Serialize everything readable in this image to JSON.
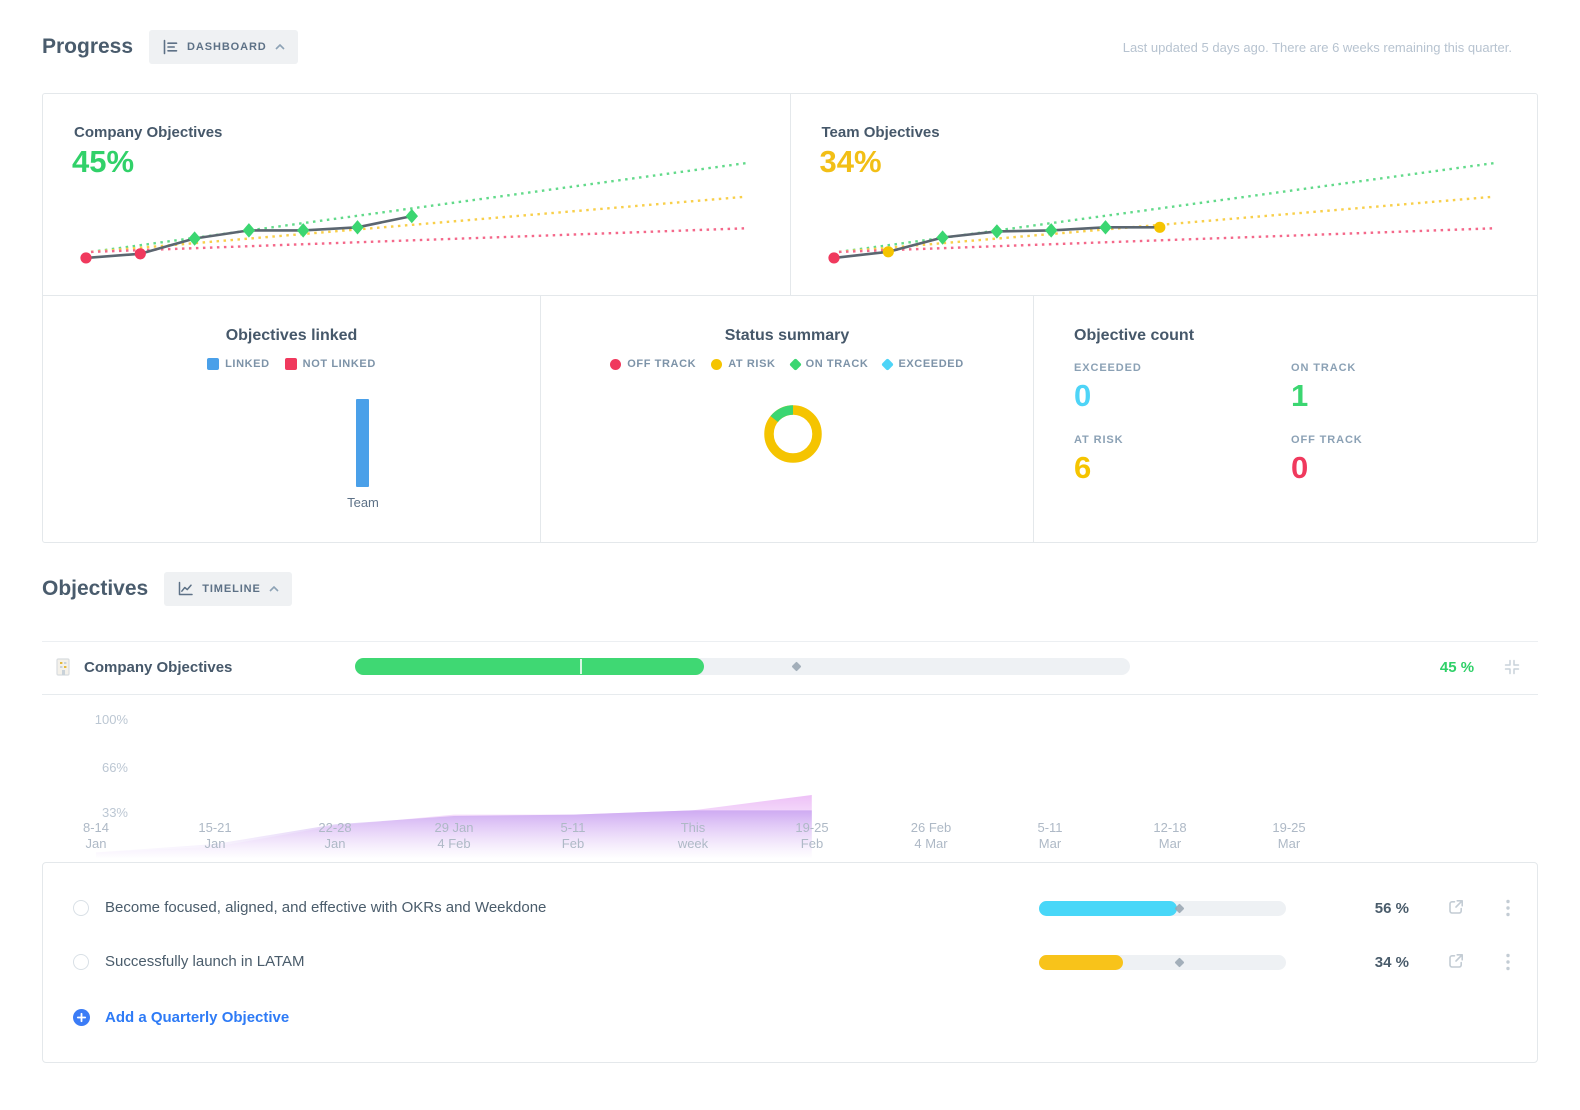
{
  "header": {
    "title": "Progress",
    "view_button": "DASHBOARD",
    "last_updated": "Last updated 5 days ago. There are 6 weeks remaining this quarter."
  },
  "summary": {
    "company": {
      "title": "Company Objectives",
      "value": "45%",
      "value_color": "#31d169"
    },
    "team": {
      "title": "Team Objectives",
      "value": "34%",
      "value_color": "#f2bf16"
    },
    "linked": {
      "title": "Objectives linked",
      "legend": [
        {
          "label": "LINKED",
          "color": "#4aa0e9"
        },
        {
          "label": "NOT LINKED",
          "color": "#f0395d"
        }
      ],
      "bar_label": "Team"
    },
    "status": {
      "title": "Status summary",
      "legend": [
        {
          "label": "OFF TRACK",
          "color": "#f0395d",
          "shape": "circle"
        },
        {
          "label": "AT RISK",
          "color": "#f5c400",
          "shape": "circle"
        },
        {
          "label": "ON TRACK",
          "color": "#3bd671",
          "shape": "diamond"
        },
        {
          "label": "EXCEEDED",
          "color": "#4ed4f7",
          "shape": "diamond"
        }
      ]
    },
    "count": {
      "title": "Objective count",
      "items": [
        {
          "label": "EXCEEDED",
          "value": "0",
          "color": "#4ed4f7"
        },
        {
          "label": "ON TRACK",
          "value": "1",
          "color": "#3bd671"
        },
        {
          "label": "AT RISK",
          "value": "6",
          "color": "#f5c400"
        },
        {
          "label": "OFF TRACK",
          "value": "0",
          "color": "#f0395d"
        }
      ]
    }
  },
  "objectives_section": {
    "title": "Objectives",
    "view_button": "TIMELINE",
    "group_row": {
      "title": "Company Objectives",
      "percent_label": "45 %",
      "percent_color": "#2fd068",
      "progress": 45,
      "expected_marker": 57,
      "segment_divider": 29,
      "bar_color": "#3fd873"
    },
    "rows": [
      {
        "title": "Become focused, aligned, and effective with OKRs and Weekdone",
        "percent_label": "56 %",
        "progress": 56,
        "expected_marker": 57,
        "bar_color": "#48d7f8"
      },
      {
        "title": "Successfully launch in LATAM",
        "percent_label": "34 %",
        "progress": 34,
        "expected_marker": 57,
        "bar_color": "#f8c31a"
      }
    ],
    "add_label": "Add a Quarterly Objective"
  },
  "chart_data": [
    {
      "id": "company-trend",
      "type": "line",
      "title": "Company Objectives",
      "current": "45%",
      "x": [
        1,
        2,
        3,
        4,
        5,
        6,
        7
      ],
      "x_unit": "week of quarter (13 weeks total)",
      "values": [
        4,
        8,
        23,
        31,
        31,
        34,
        45
      ],
      "statuses": [
        "off-track",
        "off-track",
        "on-track",
        "on-track",
        "on-track",
        "on-track",
        "on-track"
      ],
      "line_color": "#5b6670",
      "ylim": [
        0,
        100
      ],
      "grid": false,
      "trend_lines": [
        {
          "name": "on-track projection",
          "target_pct": 97,
          "color": "#62da8a"
        },
        {
          "name": "at-risk projection",
          "target_pct": 64,
          "color": "#f8cf4a"
        },
        {
          "name": "off-track projection",
          "target_pct": 33,
          "color": "#f4688a"
        }
      ]
    },
    {
      "id": "team-trend",
      "type": "line",
      "title": "Team Objectives",
      "current": "34%",
      "x": [
        1,
        2,
        3,
        4,
        5,
        6,
        7
      ],
      "x_unit": "week of quarter (13 weeks total)",
      "values": [
        4,
        10,
        24,
        30,
        31,
        34,
        34
      ],
      "statuses": [
        "off-track",
        "at-risk",
        "on-track",
        "on-track",
        "on-track",
        "on-track",
        "at-risk"
      ],
      "line_color": "#5b6670",
      "ylim": [
        0,
        100
      ],
      "grid": false,
      "trend_lines": [
        {
          "name": "on-track projection",
          "target_pct": 97,
          "color": "#62da8a"
        },
        {
          "name": "at-risk projection",
          "target_pct": 64,
          "color": "#f8cf4a"
        },
        {
          "name": "off-track projection",
          "target_pct": 33,
          "color": "#f4688a"
        }
      ]
    },
    {
      "id": "linked-bar",
      "type": "bar",
      "title": "Objectives linked",
      "categories": [
        "Team"
      ],
      "series": [
        {
          "name": "LINKED",
          "values": [
            1
          ],
          "color": "#4aa0e9"
        },
        {
          "name": "NOT LINKED",
          "values": [
            0
          ],
          "color": "#f0395d"
        }
      ]
    },
    {
      "id": "status-donut",
      "type": "pie",
      "title": "Status summary",
      "slices": [
        {
          "label": "AT RISK",
          "value": 6,
          "color": "#f5c400"
        },
        {
          "label": "ON TRACK",
          "value": 1,
          "color": "#3bd671"
        },
        {
          "label": "OFF TRACK",
          "value": 0,
          "color": "#f0395d"
        },
        {
          "label": "EXCEEDED",
          "value": 0,
          "color": "#4ed4f7"
        }
      ]
    },
    {
      "id": "timeline-area",
      "type": "area",
      "title": "Company Objectives timeline",
      "y_ticks": [
        "100%",
        "66%",
        "33%"
      ],
      "ylim": [
        0,
        100
      ],
      "grid": false,
      "x_tick_labels": [
        "8-14 / Jan",
        "15-21 / Jan",
        "22-28 / Jan",
        "29 Jan / 4 Feb",
        "5-11 / Feb",
        "This / week",
        "19-25 / Feb",
        "26 Feb / 4 Mar",
        "5-11 / Mar",
        "12-18 / Mar",
        "19-25 / Mar"
      ],
      "series": [
        {
          "name": "Company Objectives",
          "values": [
            4,
            8,
            23,
            31,
            31,
            34,
            45
          ]
        },
        {
          "name": "Team Objectives",
          "values": [
            4,
            10,
            24,
            30,
            31,
            34,
            34
          ]
        }
      ]
    }
  ]
}
